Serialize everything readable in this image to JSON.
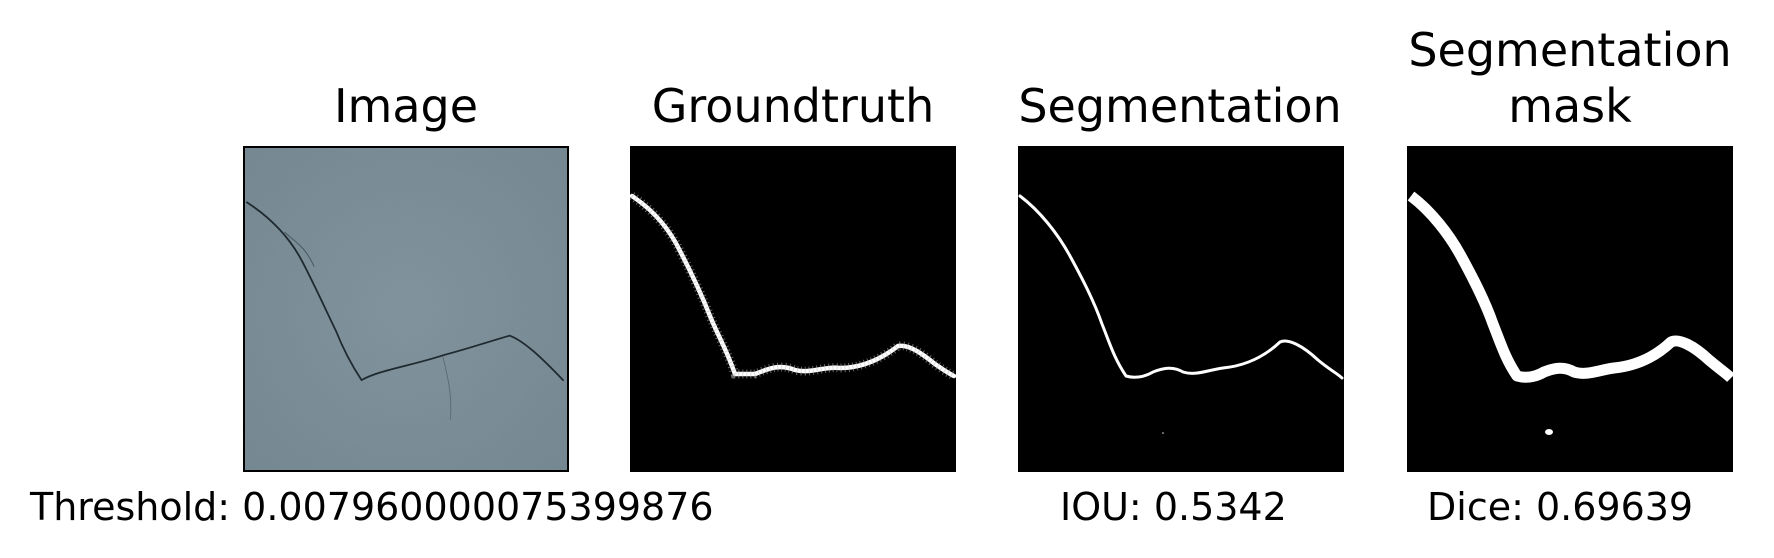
{
  "panels": [
    {
      "title": "Image"
    },
    {
      "title": "Groundtruth"
    },
    {
      "title": "Segmentation"
    },
    {
      "title": "Segmentation mask"
    }
  ],
  "captions": {
    "threshold": "Threshold: 0.007960000075399876",
    "iou": "IOU: 0.5342",
    "dice": "Dice: 0.69639"
  },
  "colors": {
    "concrete": "#7f929b",
    "crack": "#1f2a30",
    "mask_background": "#000000",
    "mask_foreground": "#ffffff"
  }
}
